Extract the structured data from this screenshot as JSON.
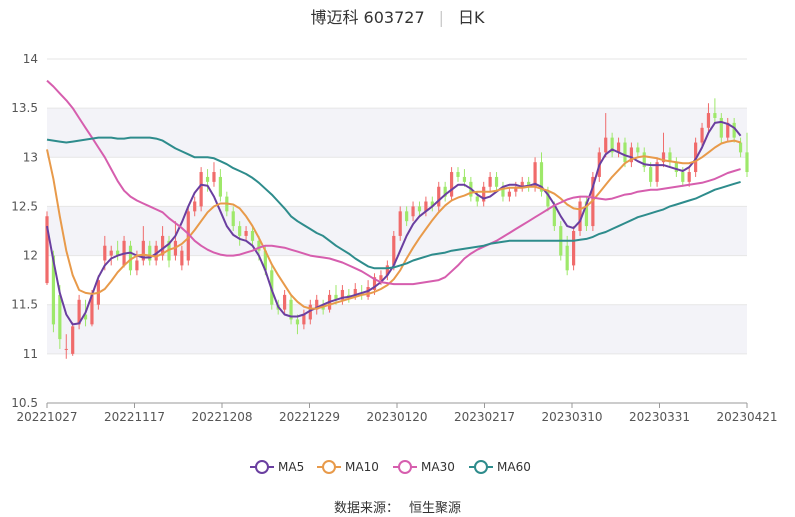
{
  "header": {
    "title": "博迈科 603727",
    "period": "日K"
  },
  "source": {
    "label": "数据来源：",
    "value": "恒生聚源"
  },
  "colors": {
    "up": "#f06b6b",
    "down": "#9ee86a",
    "ma5": "#6a3fa0",
    "ma10": "#e89a4a",
    "ma30": "#d65eae",
    "ma60": "#2e8c8c",
    "band": "#f3f3f8",
    "grid": "#e6e6e6"
  },
  "chart_data": {
    "type": "candlestick",
    "ylim": [
      10.5,
      14
    ],
    "yticks": [
      "10.5",
      "11",
      "11.5",
      "12",
      "12.5",
      "13",
      "13.5",
      "14"
    ],
    "x_tick_labels": [
      "20221027",
      "20221117",
      "20221208",
      "20221229",
      "20230120",
      "20230217",
      "20230310",
      "20230331",
      "20230421"
    ],
    "legend": {
      "position": "bottom",
      "entries": [
        "MA5",
        "MA10",
        "MA30",
        "MA60"
      ]
    },
    "candles": [
      [
        11.72,
        12.4,
        11.7,
        12.45
      ],
      [
        12.0,
        11.3,
        11.22,
        12.05
      ],
      [
        11.6,
        11.15,
        11.05,
        11.7
      ],
      [
        11.05,
        11.05,
        10.95,
        11.2
      ],
      [
        11.0,
        11.28,
        10.98,
        11.32
      ],
      [
        11.3,
        11.55,
        11.25,
        11.6
      ],
      [
        11.4,
        11.35,
        11.28,
        11.55
      ],
      [
        11.3,
        11.6,
        11.28,
        11.65
      ],
      [
        11.5,
        11.75,
        11.45,
        11.8
      ],
      [
        11.95,
        12.1,
        11.85,
        12.2
      ],
      [
        12.0,
        12.05,
        11.9,
        12.1
      ],
      [
        12.05,
        12.0,
        11.95,
        12.15
      ],
      [
        11.9,
        12.15,
        11.88,
        12.2
      ],
      [
        12.1,
        11.85,
        11.8,
        12.15
      ],
      [
        11.85,
        11.95,
        11.8,
        12.05
      ],
      [
        11.95,
        12.15,
        11.9,
        12.3
      ],
      [
        12.1,
        11.95,
        11.9,
        12.15
      ],
      [
        11.95,
        12.1,
        11.9,
        12.15
      ],
      [
        12.0,
        12.2,
        11.95,
        12.3
      ],
      [
        12.15,
        11.95,
        11.88,
        12.2
      ],
      [
        12.0,
        12.15,
        11.95,
        12.35
      ],
      [
        11.9,
        12.05,
        11.85,
        12.1
      ],
      [
        11.95,
        12.45,
        11.9,
        12.5
      ],
      [
        12.45,
        12.55,
        12.4,
        12.6
      ],
      [
        12.5,
        12.85,
        12.45,
        12.9
      ],
      [
        12.8,
        12.75,
        12.65,
        12.88
      ],
      [
        12.75,
        12.85,
        12.7,
        12.95
      ],
      [
        12.8,
        12.6,
        12.55,
        12.88
      ],
      [
        12.6,
        12.45,
        12.4,
        12.65
      ],
      [
        12.45,
        12.3,
        12.25,
        12.5
      ],
      [
        12.3,
        12.2,
        12.1,
        12.35
      ],
      [
        12.2,
        12.25,
        12.15,
        12.3
      ],
      [
        12.25,
        12.15,
        12.1,
        12.3
      ],
      [
        12.15,
        12.05,
        11.95,
        12.2
      ],
      [
        12.05,
        11.85,
        11.8,
        12.1
      ],
      [
        11.85,
        11.5,
        11.45,
        11.9
      ],
      [
        11.5,
        11.45,
        11.4,
        11.55
      ],
      [
        11.45,
        11.6,
        11.4,
        11.65
      ],
      [
        11.55,
        11.35,
        11.3,
        11.6
      ],
      [
        11.35,
        11.3,
        11.2,
        11.4
      ],
      [
        11.3,
        11.4,
        11.25,
        11.45
      ],
      [
        11.35,
        11.5,
        11.3,
        11.55
      ],
      [
        11.45,
        11.55,
        11.4,
        11.6
      ],
      [
        11.5,
        11.45,
        11.4,
        11.55
      ],
      [
        11.45,
        11.6,
        11.42,
        11.65
      ],
      [
        11.6,
        11.55,
        11.5,
        11.7
      ],
      [
        11.55,
        11.65,
        11.5,
        11.7
      ],
      [
        11.6,
        11.58,
        11.52,
        11.66
      ],
      [
        11.58,
        11.66,
        11.55,
        11.72
      ],
      [
        11.62,
        11.6,
        11.55,
        11.7
      ],
      [
        11.58,
        11.68,
        11.55,
        11.75
      ],
      [
        11.65,
        11.78,
        11.6,
        11.82
      ],
      [
        11.75,
        11.8,
        11.7,
        11.85
      ],
      [
        11.8,
        11.9,
        11.75,
        11.95
      ],
      [
        11.9,
        12.2,
        11.85,
        12.25
      ],
      [
        12.2,
        12.45,
        12.15,
        12.5
      ],
      [
        12.45,
        12.35,
        12.3,
        12.5
      ],
      [
        12.4,
        12.5,
        12.35,
        12.55
      ],
      [
        12.5,
        12.45,
        12.4,
        12.55
      ],
      [
        12.45,
        12.55,
        12.4,
        12.6
      ],
      [
        12.55,
        12.5,
        12.45,
        12.6
      ],
      [
        12.5,
        12.7,
        12.45,
        12.75
      ],
      [
        12.7,
        12.6,
        12.55,
        12.75
      ],
      [
        12.6,
        12.85,
        12.55,
        12.9
      ],
      [
        12.85,
        12.8,
        12.75,
        12.9
      ],
      [
        12.8,
        12.75,
        12.7,
        12.88
      ],
      [
        12.75,
        12.6,
        12.55,
        12.8
      ],
      [
        12.6,
        12.55,
        12.5,
        12.65
      ],
      [
        12.55,
        12.7,
        12.5,
        12.75
      ],
      [
        12.7,
        12.8,
        12.65,
        12.85
      ],
      [
        12.8,
        12.7,
        12.65,
        12.85
      ],
      [
        12.7,
        12.6,
        12.55,
        12.75
      ],
      [
        12.6,
        12.65,
        12.55,
        12.7
      ],
      [
        12.65,
        12.7,
        12.6,
        12.75
      ],
      [
        12.7,
        12.75,
        12.65,
        12.8
      ],
      [
        12.75,
        12.7,
        12.65,
        12.8
      ],
      [
        12.7,
        12.95,
        12.65,
        13.0
      ],
      [
        12.95,
        12.65,
        12.6,
        13.05
      ],
      [
        12.65,
        12.5,
        12.45,
        12.7
      ],
      [
        12.5,
        12.3,
        12.25,
        12.55
      ],
      [
        12.3,
        12.0,
        11.95,
        12.35
      ],
      [
        12.1,
        11.85,
        11.8,
        12.2
      ],
      [
        11.9,
        12.25,
        11.85,
        12.3
      ],
      [
        12.25,
        12.55,
        12.2,
        12.6
      ],
      [
        12.55,
        12.3,
        12.25,
        12.6
      ],
      [
        12.3,
        12.8,
        12.25,
        12.85
      ],
      [
        12.8,
        13.05,
        12.75,
        13.1
      ],
      [
        13.05,
        13.2,
        13.0,
        13.45
      ],
      [
        13.2,
        13.05,
        13.0,
        13.25
      ],
      [
        13.05,
        13.15,
        13.0,
        13.2
      ],
      [
        13.15,
        12.95,
        12.9,
        13.2
      ],
      [
        12.95,
        13.1,
        12.9,
        13.15
      ],
      [
        13.1,
        13.05,
        13.0,
        13.15
      ],
      [
        13.05,
        12.9,
        12.85,
        13.1
      ],
      [
        12.9,
        12.75,
        12.7,
        12.95
      ],
      [
        12.75,
        12.95,
        12.7,
        13.0
      ],
      [
        12.95,
        13.05,
        12.9,
        13.25
      ],
      [
        13.05,
        12.95,
        12.9,
        13.1
      ],
      [
        12.95,
        12.85,
        12.8,
        13.0
      ],
      [
        12.85,
        12.75,
        12.7,
        12.9
      ],
      [
        12.75,
        12.85,
        12.7,
        12.9
      ],
      [
        12.85,
        13.15,
        12.8,
        13.2
      ],
      [
        13.15,
        13.3,
        13.1,
        13.35
      ],
      [
        13.3,
        13.45,
        13.25,
        13.55
      ],
      [
        13.45,
        13.4,
        13.35,
        13.6
      ],
      [
        13.4,
        13.2,
        13.15,
        13.45
      ],
      [
        13.2,
        13.35,
        13.15,
        13.4
      ],
      [
        13.35,
        13.2,
        13.15,
        13.4
      ],
      [
        13.15,
        13.05,
        13.0,
        13.2
      ],
      [
        13.05,
        12.85,
        12.8,
        13.25
      ]
    ],
    "series": [
      {
        "name": "MA5",
        "values": [
          12.3,
          11.95,
          11.62,
          11.4,
          11.3,
          11.31,
          11.42,
          11.6,
          11.78,
          11.9,
          11.97,
          12.0,
          12.02,
          12.03,
          12.0,
          11.98,
          11.98,
          12.02,
          12.07,
          12.12,
          12.2,
          12.34,
          12.5,
          12.64,
          12.72,
          12.71,
          12.6,
          12.45,
          12.3,
          12.21,
          12.17,
          12.15,
          12.1,
          12.0,
          11.85,
          11.65,
          11.48,
          11.4,
          11.38,
          11.38,
          11.4,
          11.44,
          11.47,
          11.5,
          11.53,
          11.55,
          11.57,
          11.58,
          11.6,
          11.62,
          11.64,
          11.68,
          11.73,
          11.8,
          11.9,
          12.05,
          12.2,
          12.32,
          12.4,
          12.45,
          12.5,
          12.56,
          12.62,
          12.67,
          12.72,
          12.72,
          12.68,
          12.62,
          12.58,
          12.6,
          12.65,
          12.7,
          12.72,
          12.72,
          12.7,
          12.71,
          12.73,
          12.7,
          12.62,
          12.52,
          12.4,
          12.3,
          12.28,
          12.35,
          12.52,
          12.7,
          12.92,
          13.03,
          13.08,
          13.05,
          13.02,
          13.0,
          12.96,
          12.93,
          12.92,
          12.92,
          12.92,
          12.9,
          12.88,
          12.86,
          12.9,
          12.98,
          13.1,
          13.25,
          13.35,
          13.36,
          13.34,
          13.3,
          13.22
        ]
      },
      {
        "name": "MA10",
        "values": [
          13.08,
          12.78,
          12.4,
          12.05,
          11.8,
          11.65,
          11.62,
          11.61,
          11.62,
          11.66,
          11.74,
          11.83,
          11.9,
          11.96,
          12.0,
          12.01,
          12.0,
          11.99,
          12.02,
          12.06,
          12.08,
          12.12,
          12.18,
          12.26,
          12.35,
          12.44,
          12.5,
          12.53,
          12.53,
          12.52,
          12.48,
          12.4,
          12.3,
          12.18,
          12.05,
          11.91,
          11.8,
          11.7,
          11.6,
          11.53,
          11.48,
          11.46,
          11.46,
          11.48,
          11.5,
          11.52,
          11.54,
          11.56,
          11.58,
          11.6,
          11.61,
          11.63,
          11.66,
          11.7,
          11.76,
          11.85,
          11.97,
          12.08,
          12.18,
          12.27,
          12.36,
          12.44,
          12.51,
          12.56,
          12.59,
          12.61,
          12.64,
          12.65,
          12.65,
          12.65,
          12.66,
          12.68,
          12.69,
          12.69,
          12.69,
          12.7,
          12.7,
          12.68,
          12.66,
          12.63,
          12.58,
          12.52,
          12.48,
          12.47,
          12.5,
          12.56,
          12.64,
          12.72,
          12.8,
          12.87,
          12.94,
          12.98,
          13.0,
          13.01,
          13.0,
          12.99,
          12.97,
          12.96,
          12.95,
          12.94,
          12.94,
          12.96,
          13.0,
          13.05,
          13.1,
          13.14,
          13.16,
          13.17,
          13.15
        ]
      },
      {
        "name": "MA30",
        "values": [
          13.78,
          13.72,
          13.65,
          13.58,
          13.5,
          13.4,
          13.3,
          13.2,
          13.1,
          13.0,
          12.88,
          12.76,
          12.66,
          12.6,
          12.56,
          12.53,
          12.5,
          12.47,
          12.44,
          12.38,
          12.33,
          12.28,
          12.22,
          12.15,
          12.1,
          12.06,
          12.03,
          12.01,
          12.0,
          12.0,
          12.01,
          12.03,
          12.05,
          12.08,
          12.1,
          12.1,
          12.09,
          12.08,
          12.06,
          12.04,
          12.02,
          12.0,
          11.99,
          11.98,
          11.97,
          11.95,
          11.93,
          11.9,
          11.87,
          11.84,
          11.8,
          11.76,
          11.73,
          11.72,
          11.71,
          11.71,
          11.71,
          11.71,
          11.72,
          11.73,
          11.74,
          11.75,
          11.78,
          11.84,
          11.9,
          11.97,
          12.02,
          12.06,
          12.09,
          12.12,
          12.15,
          12.19,
          12.23,
          12.27,
          12.31,
          12.35,
          12.39,
          12.43,
          12.47,
          12.51,
          12.54,
          12.57,
          12.59,
          12.6,
          12.6,
          12.59,
          12.58,
          12.57,
          12.58,
          12.6,
          12.62,
          12.63,
          12.65,
          12.66,
          12.67,
          12.67,
          12.68,
          12.69,
          12.7,
          12.71,
          12.72,
          12.73,
          12.74,
          12.76,
          12.78,
          12.81,
          12.84,
          12.86,
          12.88
        ]
      },
      {
        "name": "MA60",
        "values": [
          13.18,
          13.17,
          13.16,
          13.15,
          13.16,
          13.17,
          13.18,
          13.19,
          13.2,
          13.2,
          13.2,
          13.19,
          13.19,
          13.2,
          13.2,
          13.2,
          13.2,
          13.19,
          13.17,
          13.13,
          13.09,
          13.06,
          13.03,
          13.0,
          13.0,
          13.0,
          12.99,
          12.96,
          12.93,
          12.89,
          12.86,
          12.83,
          12.79,
          12.74,
          12.68,
          12.62,
          12.55,
          12.48,
          12.4,
          12.35,
          12.31,
          12.27,
          12.23,
          12.2,
          12.15,
          12.1,
          12.06,
          12.02,
          11.97,
          11.93,
          11.89,
          11.87,
          11.87,
          11.87,
          11.88,
          11.9,
          11.92,
          11.95,
          11.97,
          11.99,
          12.01,
          12.02,
          12.03,
          12.05,
          12.06,
          12.07,
          12.08,
          12.09,
          12.1,
          12.12,
          12.13,
          12.14,
          12.15,
          12.15,
          12.15,
          12.15,
          12.15,
          12.15,
          12.15,
          12.15,
          12.15,
          12.15,
          12.15,
          12.16,
          12.17,
          12.19,
          12.22,
          12.24,
          12.27,
          12.3,
          12.33,
          12.36,
          12.39,
          12.41,
          12.43,
          12.45,
          12.47,
          12.5,
          12.52,
          12.54,
          12.56,
          12.58,
          12.61,
          12.64,
          12.67,
          12.69,
          12.71,
          12.73,
          12.75
        ]
      }
    ]
  }
}
